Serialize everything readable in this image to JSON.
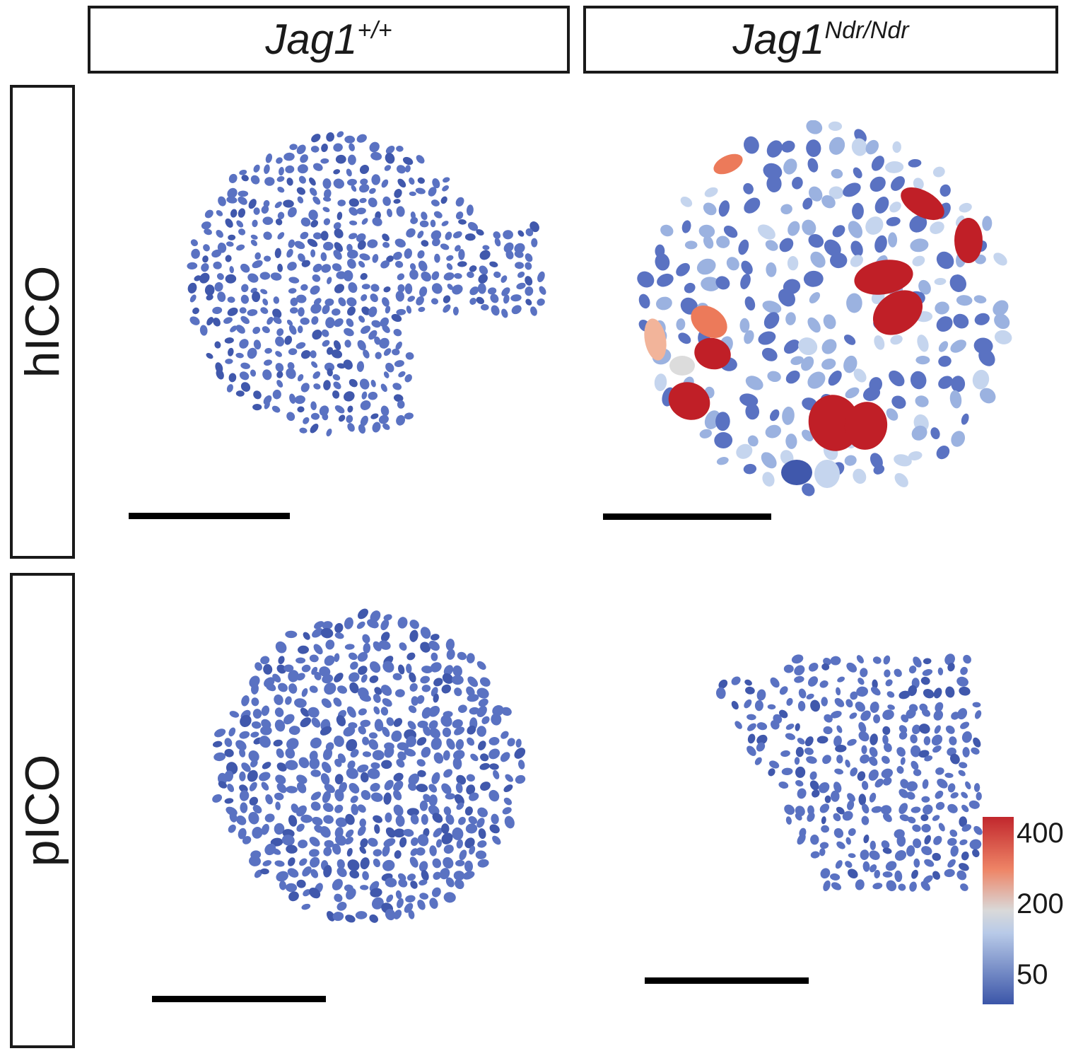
{
  "columns": [
    {
      "gene": "Jag1",
      "allele": "+/+"
    },
    {
      "gene": "Jag1",
      "allele": "Ndr/Ndr"
    }
  ],
  "rows": [
    {
      "label": "hICO"
    },
    {
      "label": "pICO"
    }
  ],
  "colorbar": {
    "ticks": [
      "400",
      "200",
      "50"
    ],
    "colors": {
      "low": "#3b55a8",
      "light": "#b8cae8",
      "mid": "#d9d9d9",
      "salmon": "#ee8466",
      "high": "#c1272d"
    }
  },
  "nucleus_colors": {
    "base": "#5a72c2",
    "light_blue": "#9bb2e0",
    "pale_blue": "#c5d5ee",
    "grey": "#dcdcdc",
    "peach": "#f2b49a",
    "salmon": "#ec7a5a",
    "red": "#c01f27",
    "dark_blue": "#4058ac"
  }
}
